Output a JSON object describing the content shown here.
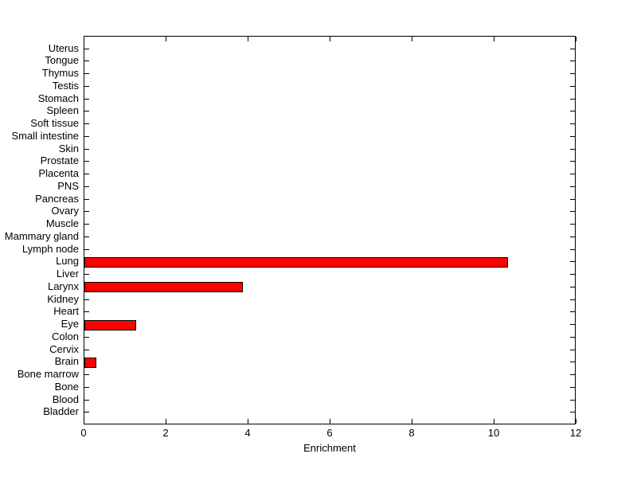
{
  "chart_data": {
    "type": "bar",
    "orientation": "horizontal",
    "title": "",
    "xlabel": "Enrichment",
    "ylabel": "",
    "xlim": [
      0,
      12
    ],
    "xticks": [
      0,
      2,
      4,
      6,
      8,
      10,
      12
    ],
    "grid": false,
    "legend": false,
    "categories": [
      "Uterus",
      "Tongue",
      "Thymus",
      "Testis",
      "Stomach",
      "Spleen",
      "Soft tissue",
      "Small intestine",
      "Skin",
      "Prostate",
      "Placenta",
      "PNS",
      "Pancreas",
      "Ovary",
      "Muscle",
      "Mammary gland",
      "Lymph node",
      "Lung",
      "Liver",
      "Larynx",
      "Kidney",
      "Heart",
      "Eye",
      "Colon",
      "Cervix",
      "Brain",
      "Bone marrow",
      "Bone",
      "Blood",
      "Bladder"
    ],
    "category_order": "top-to-bottom",
    "values": [
      0,
      0,
      0,
      0,
      0,
      0,
      0,
      0,
      0,
      0,
      0,
      0,
      0,
      0,
      0,
      0,
      0,
      10.33,
      0,
      3.86,
      0,
      0,
      1.26,
      0,
      0,
      0.3,
      0,
      0,
      0,
      0
    ],
    "bar_color": "#ff0000",
    "bar_border_color": "#000000",
    "axis_color": "#000000",
    "background_color": "#ffffff",
    "text_color": "#000000"
  }
}
